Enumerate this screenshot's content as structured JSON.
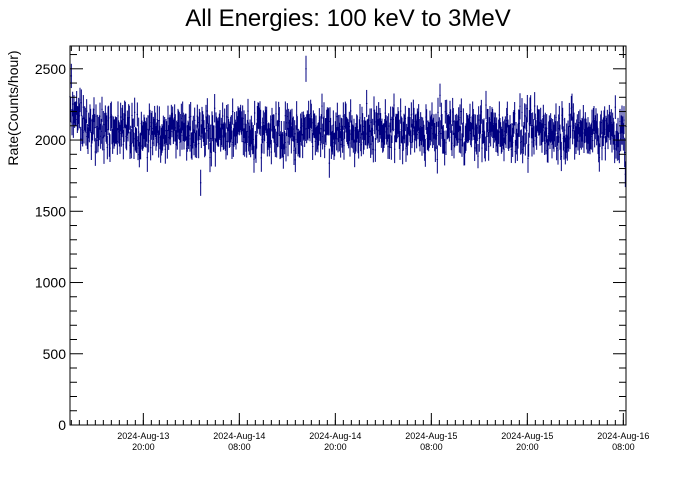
{
  "chart_data": {
    "type": "scatter",
    "title": "All Energies:  100 keV to 3MeV",
    "xlabel": "",
    "ylabel": "Rate(Counts/hour)",
    "ylim": [
      0,
      2660
    ],
    "xlim": [
      "2024-08-13 10:50",
      "2024-08-16 08:20"
    ],
    "y_ticks": [
      0,
      500,
      1000,
      1500,
      2000,
      2500
    ],
    "x_ticks": [
      {
        "date": "2024-Aug-13",
        "time": "20:00"
      },
      {
        "date": "2024-Aug-14",
        "time": "08:00"
      },
      {
        "date": "2024-Aug-14",
        "time": "20:00"
      },
      {
        "date": "2024-Aug-15",
        "time": "08:00"
      },
      {
        "date": "2024-Aug-15",
        "time": "20:00"
      },
      {
        "date": "2024-Aug-16",
        "time": "08:00"
      }
    ],
    "grid": false,
    "legend": "none",
    "series_color": "#000080",
    "series": [
      {
        "x_start": "2024-08-13 10:50",
        "x_end": "2024-08-16 08:20",
        "mean": 2060,
        "typical_range": [
          1750,
          2420
        ],
        "error_bar": 90,
        "notable_points": [
          {
            "x": "2024-08-13 11:00",
            "y": 2450
          },
          {
            "x": "2024-08-14 16:20",
            "y": 2500
          },
          {
            "x": "2024-08-14 03:10",
            "y": 1700
          },
          {
            "x": "2024-08-16 08:15",
            "y": 1760
          }
        ]
      }
    ]
  }
}
